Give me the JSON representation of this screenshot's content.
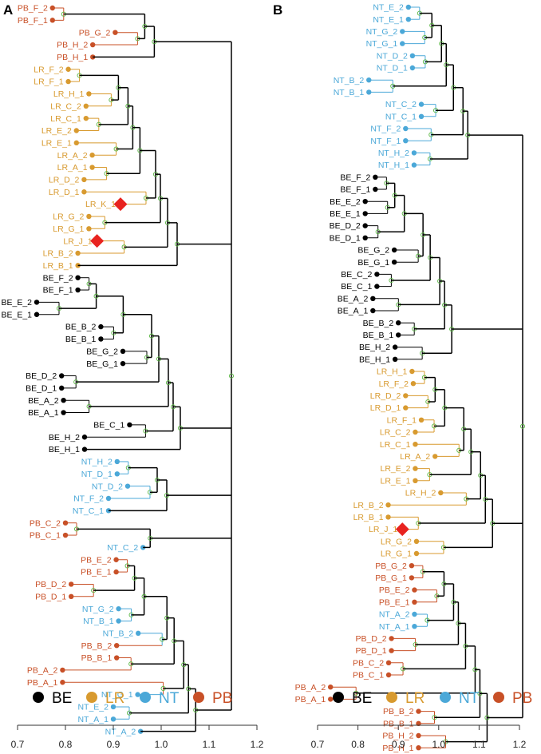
{
  "panels": [
    {
      "letter": "A",
      "clusters": [
        {
          "group": "PB",
          "height": 1.145,
          "tips": [
            {
              "label": "PB_F_2",
              "x": 0.773
            },
            {
              "label": "PB_F_1",
              "x": 0.773
            },
            {
              "label": "PB_G_2",
              "x": 0.904
            },
            {
              "label": "PB_H_2",
              "x": 0.857
            },
            {
              "label": "PB_H_1",
              "x": 0.857
            }
          ]
        },
        {
          "group": "LR",
          "height": 1.14,
          "tips": [
            {
              "label": "LR_F_2",
              "x": 0.806
            },
            {
              "label": "LR_F_1",
              "x": 0.806
            },
            {
              "label": "LR_H_1",
              "x": 0.849
            },
            {
              "label": "LR_C_2",
              "x": 0.843
            },
            {
              "label": "LR_C_1",
              "x": 0.843
            },
            {
              "label": "LR_E_2",
              "x": 0.823
            },
            {
              "label": "LR_E_1",
              "x": 0.823
            },
            {
              "label": "LR_A_2",
              "x": 0.856
            },
            {
              "label": "LR_A_1",
              "x": 0.856
            },
            {
              "label": "LR_D_2",
              "x": 0.839
            },
            {
              "label": "LR_D_1",
              "x": 0.839
            },
            {
              "label": "LR_K_1",
              "x": 0.915,
              "highlight": true
            },
            {
              "label": "LR_G_2",
              "x": 0.849
            },
            {
              "label": "LR_G_1",
              "x": 0.849
            },
            {
              "label": "LR_J_1",
              "x": 0.866,
              "highlight": true
            },
            {
              "label": "LR_B_2",
              "x": 0.826
            },
            {
              "label": "LR_B_1",
              "x": 0.826
            }
          ]
        },
        {
          "group": "BE",
          "height": 1.138,
          "tips": [
            {
              "label": "BE_F_2",
              "x": 0.826
            },
            {
              "label": "BE_F_1",
              "x": 0.826
            },
            {
              "label": "BE_E_2",
              "x": 0.74
            },
            {
              "label": "BE_E_1",
              "x": 0.74
            },
            {
              "label": "BE_B_2",
              "x": 0.874
            },
            {
              "label": "BE_B_1",
              "x": 0.874
            },
            {
              "label": "BE_G_2",
              "x": 0.92
            },
            {
              "label": "BE_G_1",
              "x": 0.92
            },
            {
              "label": "BE_D_2",
              "x": 0.792
            },
            {
              "label": "BE_D_1",
              "x": 0.792
            },
            {
              "label": "BE_A_2",
              "x": 0.796
            },
            {
              "label": "BE_A_1",
              "x": 0.796
            },
            {
              "label": "BE_C_1",
              "x": 0.934
            },
            {
              "label": "BE_H_2",
              "x": 0.84
            },
            {
              "label": "BE_H_1",
              "x": 0.84
            }
          ]
        },
        {
          "group": "NT",
          "height": 1.14,
          "tips": [
            {
              "label": "NT_H_2",
              "x": 0.908
            },
            {
              "label": "NT_D_1",
              "x": 0.908
            },
            {
              "label": "NT_D_2",
              "x": 0.93
            },
            {
              "label": "NT_F_2",
              "x": 0.89
            },
            {
              "label": "NT_C_1",
              "x": 0.89
            }
          ]
        },
        {
          "group": "PB",
          "height": 1.142,
          "tips": [
            {
              "label": "PB_C_2",
              "x": 0.8
            },
            {
              "label": "PB_C_1",
              "x": 0.8
            },
            {
              "label": "NT_C_2",
              "x": 0.962
            }
          ]
        },
        {
          "group": "PB",
          "height": 1.145,
          "tips": [
            {
              "label": "PB_E_2",
              "x": 0.906
            },
            {
              "label": "PB_E_1",
              "x": 0.906
            },
            {
              "label": "PB_D_2",
              "x": 0.812
            },
            {
              "label": "PB_D_1",
              "x": 0.812
            },
            {
              "label": "NT_G_2",
              "x": 0.911
            },
            {
              "label": "NT_B_1",
              "x": 0.911
            },
            {
              "label": "NT_B_2",
              "x": 0.952
            },
            {
              "label": "PB_B_2",
              "x": 0.907
            },
            {
              "label": "PB_B_1",
              "x": 0.907
            },
            {
              "label": "PB_A_2",
              "x": 0.794
            },
            {
              "label": "PB_A_1",
              "x": 0.794
            },
            {
              "label": "NT_G_1",
              "x": 0.951
            },
            {
              "label": "NT_E_2",
              "x": 0.9
            },
            {
              "label": "NT_A_1",
              "x": 0.9
            },
            {
              "label": "NT_A_2",
              "x": 0.957
            }
          ]
        }
      ]
    },
    {
      "letter": "B",
      "clusters": [
        {
          "group": "NT",
          "height": 1.17,
          "tips": [
            {
              "label": "NT_E_2",
              "x": 0.925
            },
            {
              "label": "NT_E_1",
              "x": 0.925
            },
            {
              "label": "NT_G_2",
              "x": 0.91
            },
            {
              "label": "NT_G_1",
              "x": 0.91
            },
            {
              "label": "NT_D_2",
              "x": 0.935
            },
            {
              "label": "NT_D_1",
              "x": 0.935
            },
            {
              "label": "NT_B_2",
              "x": 0.827
            },
            {
              "label": "NT_B_1",
              "x": 0.827
            },
            {
              "label": "NT_C_2",
              "x": 0.957
            },
            {
              "label": "NT_C_1",
              "x": 0.957
            },
            {
              "label": "NT_F_2",
              "x": 0.918
            },
            {
              "label": "NT_F_1",
              "x": 0.918
            },
            {
              "label": "NT_H_2",
              "x": 0.939
            },
            {
              "label": "NT_H_1",
              "x": 0.939
            }
          ]
        },
        {
          "group": "BE",
          "height": 1.16,
          "tips": [
            {
              "label": "BE_F_2",
              "x": 0.843
            },
            {
              "label": "BE_F_1",
              "x": 0.843
            },
            {
              "label": "BE_E_2",
              "x": 0.818
            },
            {
              "label": "BE_E_1",
              "x": 0.818
            },
            {
              "label": "BE_D_2",
              "x": 0.818
            },
            {
              "label": "BE_D_1",
              "x": 0.818
            },
            {
              "label": "BE_G_2",
              "x": 0.89
            },
            {
              "label": "BE_G_1",
              "x": 0.89
            },
            {
              "label": "BE_C_2",
              "x": 0.847
            },
            {
              "label": "BE_C_1",
              "x": 0.847
            },
            {
              "label": "BE_A_2",
              "x": 0.837
            },
            {
              "label": "BE_A_1",
              "x": 0.837
            },
            {
              "label": "BE_B_2",
              "x": 0.9
            },
            {
              "label": "BE_B_1",
              "x": 0.9
            },
            {
              "label": "BE_H_2",
              "x": 0.892
            },
            {
              "label": "BE_H_1",
              "x": 0.892
            }
          ]
        },
        {
          "group": "LR",
          "height": 1.16,
          "tips": [
            {
              "label": "LR_H_1",
              "x": 0.934
            },
            {
              "label": "LR_F_2",
              "x": 0.937
            },
            {
              "label": "LR_D_2",
              "x": 0.918
            },
            {
              "label": "LR_D_1",
              "x": 0.918
            },
            {
              "label": "LR_F_1",
              "x": 0.957
            },
            {
              "label": "LR_C_2",
              "x": 0.942
            },
            {
              "label": "LR_C_1",
              "x": 0.942
            },
            {
              "label": "LR_A_2",
              "x": 0.991
            },
            {
              "label": "LR_E_2",
              "x": 0.942
            },
            {
              "label": "LR_E_1",
              "x": 0.942
            },
            {
              "label": "LR_H_2",
              "x": 1.005
            },
            {
              "label": "LR_B_2",
              "x": 0.875
            },
            {
              "label": "LR_B_1",
              "x": 0.875
            },
            {
              "label": "LR_J_1",
              "x": 0.91,
              "highlight": true
            },
            {
              "label": "LR_G_2",
              "x": 0.945
            },
            {
              "label": "LR_G_1",
              "x": 0.945
            }
          ]
        },
        {
          "group": "PB",
          "height": 1.17,
          "tips": [
            {
              "label": "PB_G_2",
              "x": 0.933
            },
            {
              "label": "PB_G_1",
              "x": 0.933
            },
            {
              "label": "PB_E_2",
              "x": 0.94
            },
            {
              "label": "PB_E_1",
              "x": 0.94
            },
            {
              "label": "NT_A_2",
              "x": 0.94
            },
            {
              "label": "NT_A_1",
              "x": 0.94
            },
            {
              "label": "PB_D_2",
              "x": 0.883
            },
            {
              "label": "PB_D_1",
              "x": 0.883
            },
            {
              "label": "PB_C_2",
              "x": 0.876
            },
            {
              "label": "PB_C_1",
              "x": 0.876
            },
            {
              "label": "PB_A_2",
              "x": 0.732
            },
            {
              "label": "PB_A_1",
              "x": 0.732
            },
            {
              "label": "PB_B_2",
              "x": 0.95
            },
            {
              "label": "PB_B_1",
              "x": 0.95
            },
            {
              "label": "PB_H_2",
              "x": 0.95
            },
            {
              "label": "PB_H_1",
              "x": 0.95
            }
          ]
        }
      ]
    }
  ],
  "legend": {
    "items": [
      {
        "label": "BE",
        "color": "#000000"
      },
      {
        "label": "LR",
        "color": "#d89a2f"
      },
      {
        "label": "NT",
        "color": "#4ba8d8"
      },
      {
        "label": "PB",
        "color": "#c85027"
      }
    ]
  },
  "axis": {
    "min": 0.7,
    "max": 1.2,
    "ticks": [
      "0.7",
      "0.8",
      "0.9",
      "1.0",
      "1.1",
      "1.2"
    ]
  },
  "colors": {
    "BE": "#000000",
    "LR": "#d89a2f",
    "NT": "#4ba8d8",
    "PB": "#c85027",
    "highlight": "#e8231f",
    "node": "#5cb845"
  }
}
